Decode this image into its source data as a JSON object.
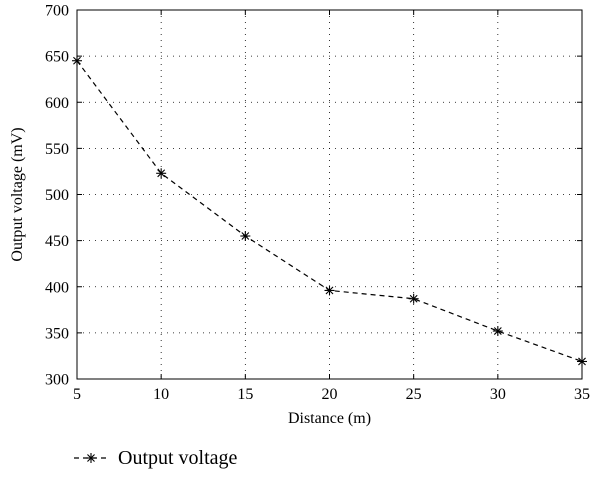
{
  "chart_data": {
    "type": "line",
    "title": "",
    "xlabel": "Distance (m)",
    "ylabel": "Output voltage (mV)",
    "xlim": [
      5,
      35
    ],
    "ylim": [
      300,
      700
    ],
    "xticks": [
      5,
      10,
      15,
      20,
      25,
      30,
      35
    ],
    "yticks": [
      300,
      350,
      400,
      450,
      500,
      550,
      600,
      650,
      700
    ],
    "grid": true,
    "legend_position": "bottom-left",
    "series": [
      {
        "name": "Output voltage",
        "line_style": "dashed",
        "marker": "asterisk",
        "color": "#000000",
        "x": [
          5,
          10,
          15,
          20,
          25,
          30,
          35
        ],
        "y": [
          645,
          523,
          455,
          396,
          387,
          352,
          319
        ]
      }
    ]
  }
}
